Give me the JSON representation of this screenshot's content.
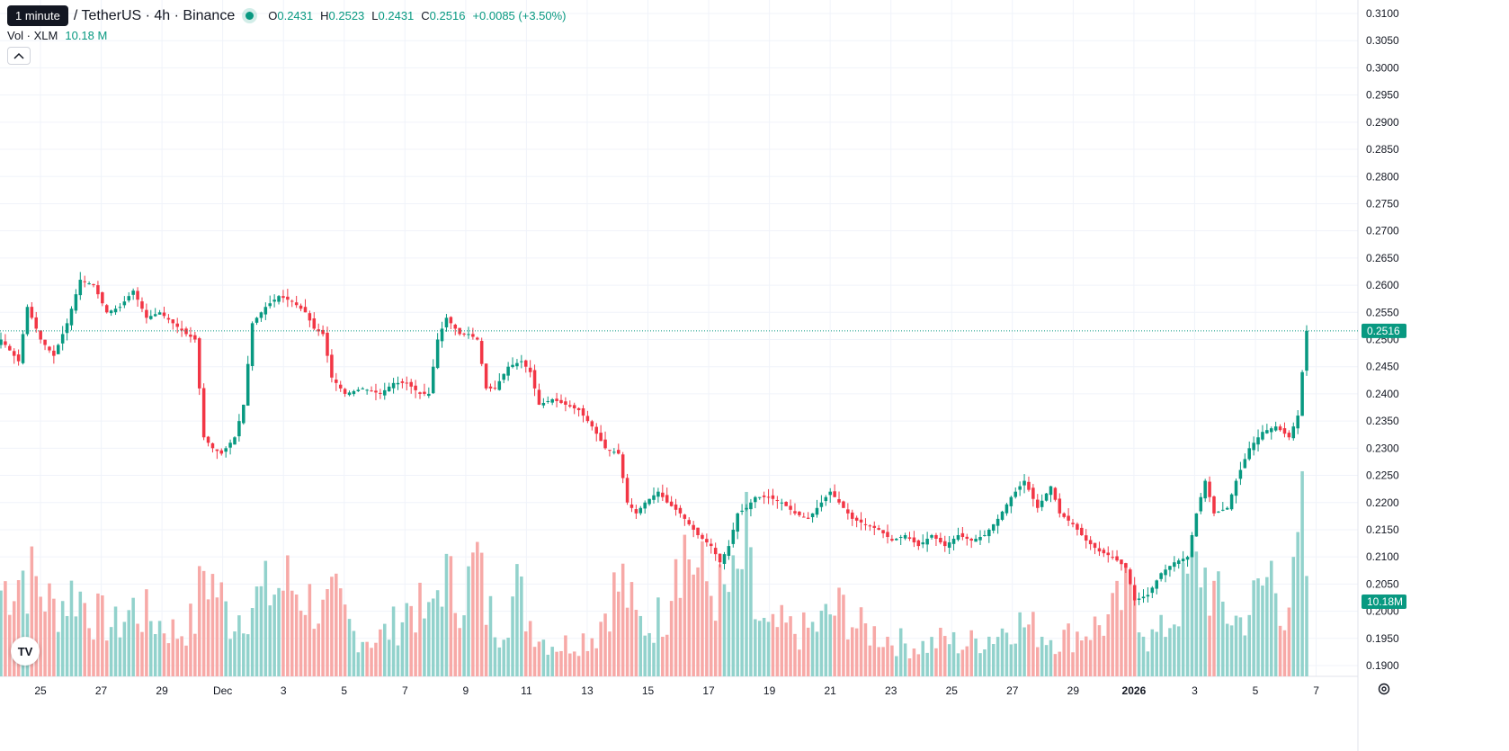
{
  "legend": {
    "tooltip": "1 minute",
    "symbol": "/ TetherUS · 4h · Binance",
    "o_label": "O",
    "o_value": "0.2431",
    "h_label": "H",
    "h_value": "0.2523",
    "l_label": "L",
    "l_value": "0.2431",
    "c_label": "C",
    "c_value": "0.2516",
    "change": "+0.0085 (+3.50%)"
  },
  "volume_legend": {
    "label": "Vol · XLM",
    "value": "10.18 M"
  },
  "icons": {
    "collapse": "chevron-up-icon",
    "logo": "tradingview-logo",
    "settings": "gear-icon"
  },
  "logo_text": "TV",
  "colors": {
    "up": "#089981",
    "down": "#F23645",
    "up_volume": "#92D2CC",
    "down_volume": "#F7A9A7"
  },
  "chart_data": {
    "type": "candlestick",
    "interval": "4h",
    "price_axis": {
      "ticks": [
        "0.3100",
        "0.3050",
        "0.3000",
        "0.2950",
        "0.2900",
        "0.2850",
        "0.2800",
        "0.2750",
        "0.2700",
        "0.2650",
        "0.2600",
        "0.2550",
        "0.2500",
        "0.2450",
        "0.2400",
        "0.2350",
        "0.2300",
        "0.2250",
        "0.2200",
        "0.2150",
        "0.2100",
        "0.2050",
        "0.2000",
        "0.1950",
        "0.1900"
      ],
      "range": [
        0.1885,
        0.311
      ]
    },
    "time_axis": {
      "labels": [
        {
          "text": "25",
          "bold": false
        },
        {
          "text": "27",
          "bold": false
        },
        {
          "text": "29",
          "bold": false
        },
        {
          "text": "Dec",
          "bold": false
        },
        {
          "text": "3",
          "bold": false
        },
        {
          "text": "5",
          "bold": false
        },
        {
          "text": "7",
          "bold": false
        },
        {
          "text": "9",
          "bold": false
        },
        {
          "text": "11",
          "bold": false
        },
        {
          "text": "13",
          "bold": false
        },
        {
          "text": "15",
          "bold": false
        },
        {
          "text": "17",
          "bold": false
        },
        {
          "text": "19",
          "bold": false
        },
        {
          "text": "21",
          "bold": false
        },
        {
          "text": "23",
          "bold": false
        },
        {
          "text": "25",
          "bold": false
        },
        {
          "text": "27",
          "bold": false
        },
        {
          "text": "29",
          "bold": false
        },
        {
          "text": "2026",
          "bold": true
        },
        {
          "text": "3",
          "bold": false
        },
        {
          "text": "5",
          "bold": false
        },
        {
          "text": "7",
          "bold": false
        }
      ]
    },
    "last_price": "0.2516",
    "last_volume_label": "10.18M",
    "price_anchors": [
      [
        0,
        0.25
      ],
      [
        4,
        0.246
      ],
      [
        6,
        0.256
      ],
      [
        9,
        0.25
      ],
      [
        12,
        0.247
      ],
      [
        15,
        0.253
      ],
      [
        18,
        0.261
      ],
      [
        21,
        0.26
      ],
      [
        24,
        0.255
      ],
      [
        27,
        0.256
      ],
      [
        30,
        0.259
      ],
      [
        33,
        0.254
      ],
      [
        36,
        0.255
      ],
      [
        39,
        0.253
      ],
      [
        42,
        0.251
      ],
      [
        44,
        0.25
      ],
      [
        46,
        0.232
      ],
      [
        48,
        0.23
      ],
      [
        50,
        0.229
      ],
      [
        53,
        0.232
      ],
      [
        55,
        0.238
      ],
      [
        57,
        0.253
      ],
      [
        60,
        0.256
      ],
      [
        63,
        0.258
      ],
      [
        66,
        0.257
      ],
      [
        69,
        0.255
      ],
      [
        71,
        0.252
      ],
      [
        73,
        0.251
      ],
      [
        75,
        0.243
      ],
      [
        78,
        0.24
      ],
      [
        82,
        0.241
      ],
      [
        86,
        0.24
      ],
      [
        89,
        0.242
      ],
      [
        92,
        0.242
      ],
      [
        95,
        0.24
      ],
      [
        97,
        0.24
      ],
      [
        99,
        0.25
      ],
      [
        101,
        0.254
      ],
      [
        104,
        0.251
      ],
      [
        106,
        0.251
      ],
      [
        108,
        0.25
      ],
      [
        110,
        0.241
      ],
      [
        112,
        0.241
      ],
      [
        115,
        0.245
      ],
      [
        118,
        0.246
      ],
      [
        120,
        0.244
      ],
      [
        122,
        0.238
      ],
      [
        125,
        0.239
      ],
      [
        128,
        0.238
      ],
      [
        131,
        0.237
      ],
      [
        134,
        0.234
      ],
      [
        137,
        0.23
      ],
      [
        140,
        0.229
      ],
      [
        142,
        0.22
      ],
      [
        144,
        0.218
      ],
      [
        146,
        0.22
      ],
      [
        149,
        0.222
      ],
      [
        151,
        0.22
      ],
      [
        154,
        0.218
      ],
      [
        156,
        0.216
      ],
      [
        158,
        0.214
      ],
      [
        161,
        0.212
      ],
      [
        163,
        0.209
      ],
      [
        165,
        0.212
      ],
      [
        167,
        0.218
      ],
      [
        169,
        0.219
      ],
      [
        171,
        0.221
      ],
      [
        174,
        0.221
      ],
      [
        177,
        0.22
      ],
      [
        180,
        0.218
      ],
      [
        183,
        0.217
      ],
      [
        185,
        0.219
      ],
      [
        188,
        0.222
      ],
      [
        190,
        0.22
      ],
      [
        193,
        0.217
      ],
      [
        196,
        0.216
      ],
      [
        199,
        0.215
      ],
      [
        202,
        0.213
      ],
      [
        205,
        0.214
      ],
      [
        208,
        0.212
      ],
      [
        211,
        0.214
      ],
      [
        214,
        0.212
      ],
      [
        217,
        0.214
      ],
      [
        220,
        0.213
      ],
      [
        223,
        0.214
      ],
      [
        226,
        0.217
      ],
      [
        229,
        0.221
      ],
      [
        232,
        0.224
      ],
      [
        235,
        0.219
      ],
      [
        238,
        0.223
      ],
      [
        240,
        0.218
      ],
      [
        243,
        0.216
      ],
      [
        246,
        0.213
      ],
      [
        249,
        0.211
      ],
      [
        252,
        0.21
      ],
      [
        255,
        0.208
      ],
      [
        257,
        0.202
      ],
      [
        260,
        0.203
      ],
      [
        263,
        0.207
      ],
      [
        266,
        0.209
      ],
      [
        269,
        0.21
      ],
      [
        271,
        0.218
      ],
      [
        273,
        0.224
      ],
      [
        275,
        0.218
      ],
      [
        278,
        0.219
      ],
      [
        280,
        0.224
      ],
      [
        283,
        0.23
      ],
      [
        286,
        0.233
      ],
      [
        289,
        0.234
      ],
      [
        292,
        0.232
      ],
      [
        294,
        0.236
      ],
      [
        295,
        0.244
      ],
      [
        296,
        0.2516
      ]
    ],
    "volume_anchors": [
      [
        0,
        28
      ],
      [
        5,
        34
      ],
      [
        8,
        30
      ],
      [
        12,
        22
      ],
      [
        17,
        28
      ],
      [
        21,
        20
      ],
      [
        26,
        16
      ],
      [
        30,
        22
      ],
      [
        35,
        18
      ],
      [
        40,
        14
      ],
      [
        44,
        18
      ],
      [
        46,
        35
      ],
      [
        49,
        28
      ],
      [
        52,
        18
      ],
      [
        55,
        22
      ],
      [
        58,
        25
      ],
      [
        62,
        28
      ],
      [
        65,
        30
      ],
      [
        69,
        26
      ],
      [
        73,
        20
      ],
      [
        76,
        24
      ],
      [
        80,
        14
      ],
      [
        85,
        12
      ],
      [
        89,
        16
      ],
      [
        93,
        24
      ],
      [
        97,
        18
      ],
      [
        100,
        34
      ],
      [
        103,
        26
      ],
      [
        106,
        30
      ],
      [
        108,
        38
      ],
      [
        110,
        22
      ],
      [
        113,
        16
      ],
      [
        117,
        28
      ],
      [
        120,
        18
      ],
      [
        123,
        12
      ],
      [
        127,
        10
      ],
      [
        131,
        12
      ],
      [
        135,
        14
      ],
      [
        138,
        26
      ],
      [
        141,
        30
      ],
      [
        144,
        18
      ],
      [
        147,
        16
      ],
      [
        151,
        22
      ],
      [
        153,
        46
      ],
      [
        156,
        40
      ],
      [
        158,
        34
      ],
      [
        161,
        28
      ],
      [
        164,
        26
      ],
      [
        167,
        30
      ],
      [
        169,
        42
      ],
      [
        171,
        20
      ],
      [
        174,
        14
      ],
      [
        177,
        16
      ],
      [
        181,
        14
      ],
      [
        185,
        16
      ],
      [
        188,
        20
      ],
      [
        191,
        22
      ],
      [
        194,
        16
      ],
      [
        198,
        14
      ],
      [
        202,
        12
      ],
      [
        206,
        10
      ],
      [
        210,
        10
      ],
      [
        214,
        12
      ],
      [
        218,
        10
      ],
      [
        222,
        12
      ],
      [
        226,
        14
      ],
      [
        229,
        18
      ],
      [
        233,
        16
      ],
      [
        236,
        14
      ],
      [
        240,
        12
      ],
      [
        244,
        14
      ],
      [
        248,
        16
      ],
      [
        251,
        18
      ],
      [
        255,
        26
      ],
      [
        257,
        28
      ],
      [
        260,
        12
      ],
      [
        263,
        14
      ],
      [
        266,
        20
      ],
      [
        269,
        30
      ],
      [
        272,
        36
      ],
      [
        275,
        26
      ],
      [
        278,
        20
      ],
      [
        281,
        18
      ],
      [
        285,
        26
      ],
      [
        288,
        34
      ],
      [
        291,
        22
      ],
      [
        293,
        28
      ],
      [
        295,
        48
      ],
      [
        296,
        34
      ]
    ]
  }
}
